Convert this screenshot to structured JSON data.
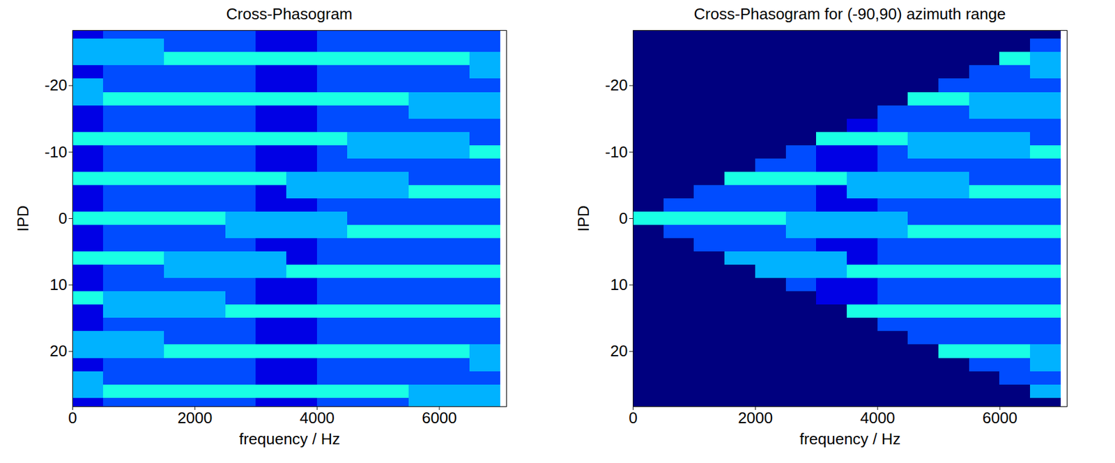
{
  "chart_data": [
    {
      "type": "heatmap",
      "title": "Cross-Phasogram",
      "x_label": "frequency / Hz",
      "y_label": "IPD",
      "x": [
        250,
        750,
        1250,
        1750,
        2250,
        2750,
        3250,
        3750,
        4250,
        4750,
        5250,
        5750,
        6250,
        6750
      ],
      "y": [
        -28,
        -26,
        -24,
        -22,
        -20,
        -18,
        -16,
        -14,
        -12,
        -10,
        -8,
        -6,
        -4,
        -2,
        0,
        2,
        4,
        6,
        8,
        10,
        12,
        14,
        16,
        18,
        20,
        22,
        24,
        26,
        28
      ],
      "values": [
        [
          1,
          2,
          2,
          2,
          2,
          2,
          1,
          1,
          2,
          2,
          2,
          2,
          2,
          2
        ],
        [
          3,
          3,
          3,
          2,
          2,
          2,
          1,
          1,
          2,
          2,
          2,
          2,
          2,
          2
        ],
        [
          3,
          3,
          3,
          4,
          4,
          4,
          4,
          4,
          4,
          4,
          4,
          4,
          4,
          3
        ],
        [
          1,
          2,
          2,
          2,
          2,
          2,
          1,
          1,
          2,
          2,
          2,
          2,
          2,
          3
        ],
        [
          3,
          2,
          2,
          2,
          2,
          2,
          1,
          1,
          2,
          2,
          2,
          2,
          2,
          2
        ],
        [
          3,
          4,
          4,
          4,
          4,
          4,
          4,
          4,
          4,
          4,
          4,
          3,
          3,
          3
        ],
        [
          1,
          2,
          2,
          2,
          2,
          2,
          1,
          1,
          2,
          2,
          2,
          3,
          3,
          3
        ],
        [
          1,
          2,
          2,
          2,
          2,
          2,
          1,
          1,
          2,
          2,
          2,
          2,
          2,
          2
        ],
        [
          4,
          4,
          4,
          4,
          4,
          4,
          4,
          4,
          4,
          3,
          3,
          3,
          3,
          2
        ],
        [
          1,
          2,
          2,
          2,
          2,
          2,
          1,
          1,
          2,
          3,
          3,
          3,
          3,
          4
        ],
        [
          1,
          2,
          2,
          2,
          2,
          2,
          1,
          1,
          2,
          2,
          2,
          2,
          2,
          2
        ],
        [
          4,
          4,
          4,
          4,
          4,
          4,
          4,
          3,
          3,
          3,
          3,
          2,
          2,
          2
        ],
        [
          1,
          2,
          2,
          2,
          2,
          2,
          1,
          3,
          3,
          3,
          3,
          4,
          4,
          4
        ],
        [
          1,
          2,
          2,
          2,
          2,
          2,
          1,
          1,
          2,
          2,
          2,
          2,
          2,
          2
        ],
        [
          4,
          4,
          4,
          4,
          4,
          3,
          3,
          3,
          3,
          2,
          2,
          2,
          2,
          2
        ],
        [
          1,
          2,
          2,
          2,
          2,
          3,
          3,
          3,
          3,
          4,
          4,
          4,
          4,
          4
        ],
        [
          1,
          2,
          2,
          2,
          2,
          2,
          1,
          1,
          2,
          2,
          2,
          2,
          2,
          2
        ],
        [
          4,
          4,
          4,
          3,
          3,
          3,
          3,
          1,
          2,
          2,
          2,
          2,
          2,
          2
        ],
        [
          1,
          2,
          2,
          3,
          3,
          3,
          3,
          4,
          4,
          4,
          4,
          4,
          4,
          4
        ],
        [
          1,
          2,
          2,
          2,
          2,
          2,
          1,
          1,
          2,
          2,
          2,
          2,
          2,
          2
        ],
        [
          4,
          3,
          3,
          3,
          3,
          2,
          1,
          1,
          2,
          2,
          2,
          2,
          2,
          2
        ],
        [
          1,
          3,
          3,
          3,
          3,
          4,
          4,
          4,
          4,
          4,
          4,
          4,
          4,
          4
        ],
        [
          1,
          2,
          2,
          2,
          2,
          2,
          1,
          1,
          2,
          2,
          2,
          2,
          2,
          2
        ],
        [
          3,
          3,
          3,
          2,
          2,
          2,
          1,
          1,
          2,
          2,
          2,
          2,
          2,
          2
        ],
        [
          3,
          3,
          3,
          4,
          4,
          4,
          4,
          4,
          4,
          4,
          4,
          4,
          4,
          3
        ],
        [
          1,
          2,
          2,
          2,
          2,
          2,
          1,
          1,
          2,
          2,
          2,
          2,
          2,
          3
        ],
        [
          3,
          2,
          2,
          2,
          2,
          2,
          1,
          1,
          2,
          2,
          2,
          2,
          2,
          2
        ],
        [
          3,
          4,
          4,
          4,
          4,
          4,
          4,
          4,
          4,
          4,
          4,
          3,
          3,
          3
        ],
        [
          1,
          2,
          2,
          2,
          2,
          2,
          1,
          1,
          2,
          2,
          2,
          3,
          3,
          3
        ]
      ],
      "xlim": [
        0,
        7100
      ],
      "ylim": [
        28.3,
        -28.3
      ],
      "xticks": [
        0,
        2000,
        4000,
        6000
      ],
      "yticks": [
        -20,
        -10,
        0,
        10,
        20
      ],
      "zlim": [
        0,
        10
      ]
    },
    {
      "type": "heatmap",
      "title": "Cross-Phasogram for (-90,90) azimuth range",
      "x_label": "frequency / Hz",
      "y_label": "IPD",
      "x": [
        250,
        750,
        1250,
        1750,
        2250,
        2750,
        3250,
        3750,
        4250,
        4750,
        5250,
        5750,
        6250,
        6750
      ],
      "y": [
        -28,
        -26,
        -24,
        -22,
        -20,
        -18,
        -16,
        -14,
        -12,
        -10,
        -8,
        -6,
        -4,
        -2,
        0,
        2,
        4,
        6,
        8,
        10,
        12,
        14,
        16,
        18,
        20,
        22,
        24,
        26,
        28
      ],
      "values": [
        [
          0,
          0,
          0,
          0,
          0,
          0,
          0,
          0,
          0,
          0,
          0,
          0,
          0,
          0
        ],
        [
          0,
          0,
          0,
          0,
          0,
          0,
          0,
          0,
          0,
          0,
          0,
          0,
          0,
          2
        ],
        [
          0,
          0,
          0,
          0,
          0,
          0,
          0,
          0,
          0,
          0,
          0,
          0,
          4,
          3
        ],
        [
          0,
          0,
          0,
          0,
          0,
          0,
          0,
          0,
          0,
          0,
          0,
          2,
          2,
          3
        ],
        [
          0,
          0,
          0,
          0,
          0,
          0,
          0,
          0,
          0,
          0,
          2,
          2,
          2,
          2
        ],
        [
          0,
          0,
          0,
          0,
          0,
          0,
          0,
          0,
          0,
          4,
          4,
          3,
          3,
          3
        ],
        [
          0,
          0,
          0,
          0,
          0,
          0,
          0,
          0,
          2,
          2,
          2,
          3,
          3,
          3
        ],
        [
          0,
          0,
          0,
          0,
          0,
          0,
          0,
          1,
          2,
          2,
          2,
          2,
          2,
          2
        ],
        [
          0,
          0,
          0,
          0,
          0,
          0,
          4,
          4,
          4,
          3,
          3,
          3,
          3,
          2
        ],
        [
          0,
          0,
          0,
          0,
          0,
          2,
          1,
          1,
          2,
          3,
          3,
          3,
          3,
          4
        ],
        [
          0,
          0,
          0,
          0,
          2,
          2,
          1,
          1,
          2,
          2,
          2,
          2,
          2,
          2
        ],
        [
          0,
          0,
          0,
          4,
          4,
          4,
          4,
          3,
          3,
          3,
          3,
          2,
          2,
          2
        ],
        [
          0,
          0,
          2,
          2,
          2,
          2,
          1,
          3,
          3,
          3,
          3,
          4,
          4,
          4
        ],
        [
          0,
          2,
          2,
          2,
          2,
          2,
          1,
          1,
          2,
          2,
          2,
          2,
          2,
          2
        ],
        [
          4,
          4,
          4,
          4,
          4,
          3,
          3,
          3,
          3,
          2,
          2,
          2,
          2,
          2
        ],
        [
          0,
          2,
          2,
          2,
          2,
          3,
          3,
          3,
          3,
          4,
          4,
          4,
          4,
          4
        ],
        [
          0,
          0,
          2,
          2,
          2,
          2,
          1,
          1,
          2,
          2,
          2,
          2,
          2,
          2
        ],
        [
          0,
          0,
          0,
          3,
          3,
          3,
          3,
          1,
          2,
          2,
          2,
          2,
          2,
          2
        ],
        [
          0,
          0,
          0,
          0,
          3,
          3,
          3,
          4,
          4,
          4,
          4,
          4,
          4,
          4
        ],
        [
          0,
          0,
          0,
          0,
          0,
          2,
          1,
          1,
          2,
          2,
          2,
          2,
          2,
          2
        ],
        [
          0,
          0,
          0,
          0,
          0,
          0,
          1,
          1,
          2,
          2,
          2,
          2,
          2,
          2
        ],
        [
          0,
          0,
          0,
          0,
          0,
          0,
          0,
          4,
          4,
          4,
          4,
          4,
          4,
          4
        ],
        [
          0,
          0,
          0,
          0,
          0,
          0,
          0,
          0,
          2,
          2,
          2,
          2,
          2,
          2
        ],
        [
          0,
          0,
          0,
          0,
          0,
          0,
          0,
          0,
          0,
          2,
          2,
          2,
          2,
          2
        ],
        [
          0,
          0,
          0,
          0,
          0,
          0,
          0,
          0,
          0,
          0,
          4,
          4,
          4,
          3
        ],
        [
          0,
          0,
          0,
          0,
          0,
          0,
          0,
          0,
          0,
          0,
          0,
          2,
          2,
          3
        ],
        [
          0,
          0,
          0,
          0,
          0,
          0,
          0,
          0,
          0,
          0,
          0,
          0,
          2,
          2
        ],
        [
          0,
          0,
          0,
          0,
          0,
          0,
          0,
          0,
          0,
          0,
          0,
          0,
          0,
          3
        ],
        [
          0,
          0,
          0,
          0,
          0,
          0,
          0,
          0,
          0,
          0,
          0,
          0,
          0,
          0
        ]
      ],
      "xlim": [
        0,
        7100
      ],
      "ylim": [
        28.3,
        -28.3
      ],
      "xticks": [
        0,
        2000,
        4000,
        6000
      ],
      "yticks": [
        -20,
        -10,
        0,
        10,
        20
      ],
      "zlim": [
        0,
        10
      ]
    }
  ]
}
